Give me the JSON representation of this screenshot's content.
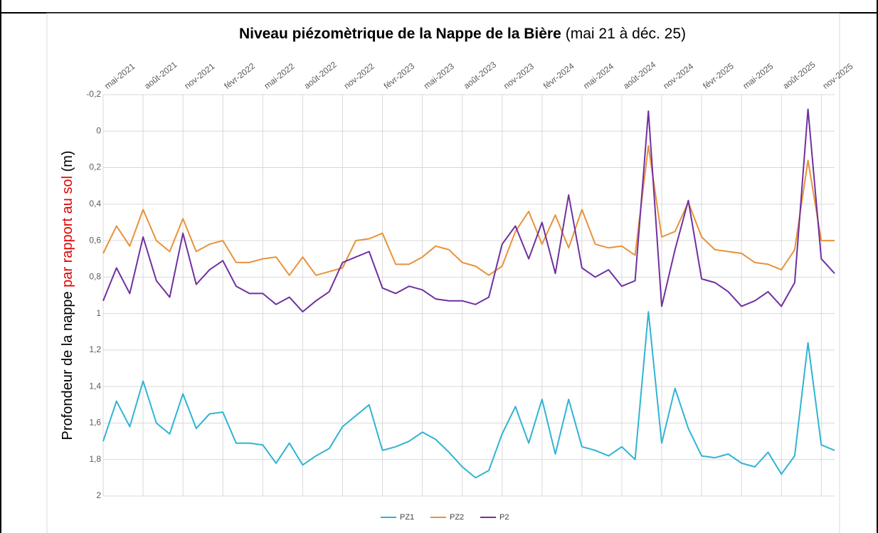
{
  "chart_data": {
    "type": "line",
    "title": "Niveau piézomètrique de la Nappe de la Bière",
    "subtitle": "(mai 21 à déc. 25)",
    "y_label": "Profondeur de la nappe ",
    "y_label_highlight": "par rapport au sol",
    "y_label_unit": " (m)",
    "ylim": [
      -0.2,
      2
    ],
    "y_reversed": true,
    "yticks": [
      {
        "value": -0.2,
        "label": "-0,2"
      },
      0,
      {
        "value": 0.2,
        "label": "0,2"
      },
      {
        "value": 0.4,
        "label": "0,4"
      },
      {
        "value": 0.6,
        "label": "0,6"
      },
      {
        "value": 0.8,
        "label": "0,8"
      },
      1,
      {
        "value": 1.2,
        "label": "1,2"
      },
      {
        "value": 1.4,
        "label": "1,4"
      },
      {
        "value": 1.6,
        "label": "1,6"
      },
      {
        "value": 1.8,
        "label": "1,8"
      },
      2
    ],
    "xlim": [
      "2021-05",
      "2025-12"
    ],
    "xticks": [
      {
        "value": "2021-05",
        "label": "mai-2021"
      },
      {
        "value": "2021-08",
        "label": "août-2021"
      },
      {
        "value": "2021-11",
        "label": "nov-2021"
      },
      {
        "value": "2022-02",
        "label": "févr-2022"
      },
      {
        "value": "2022-05",
        "label": "mai-2022"
      },
      {
        "value": "2022-08",
        "label": "août-2022"
      },
      {
        "value": "2022-11",
        "label": "nov-2022"
      },
      {
        "value": "2023-02",
        "label": "févr-2023"
      },
      {
        "value": "2023-05",
        "label": "mai-2023"
      },
      {
        "value": "2023-08",
        "label": "août-2023"
      },
      {
        "value": "2023-11",
        "label": "nov-2023"
      },
      {
        "value": "2024-02",
        "label": "févr-2024"
      },
      {
        "value": "2024-05",
        "label": "mai-2024"
      },
      {
        "value": "2024-08",
        "label": "août-2024"
      },
      {
        "value": "2024-11",
        "label": "nov-2024"
      },
      {
        "value": "2025-02",
        "label": "févr-2025"
      },
      {
        "value": "2025-05",
        "label": "mai-2025"
      },
      {
        "value": "2025-08",
        "label": "août-2025"
      },
      {
        "value": "2025-11",
        "label": "nov-2025"
      }
    ],
    "grid": true,
    "legend": "bottom",
    "x": [
      "2021-05",
      "2021-06",
      "2021-07",
      "2021-08",
      "2021-09",
      "2021-10",
      "2021-11",
      "2021-12",
      "2022-01",
      "2022-02",
      "2022-03",
      "2022-04",
      "2022-05",
      "2022-06",
      "2022-07",
      "2022-08",
      "2022-09",
      "2022-10",
      "2022-11",
      "2022-12",
      "2023-01",
      "2023-02",
      "2023-03",
      "2023-04",
      "2023-05",
      "2023-06",
      "2023-07",
      "2023-08",
      "2023-09",
      "2023-10",
      "2023-11",
      "2023-12",
      "2024-01",
      "2024-02",
      "2024-03",
      "2024-04",
      "2024-05",
      "2024-06",
      "2024-07",
      "2024-08",
      "2024-09",
      "2024-10",
      "2024-11",
      "2024-12",
      "2025-01",
      "2025-02",
      "2025-03",
      "2025-04",
      "2025-05",
      "2025-06",
      "2025-07",
      "2025-08",
      "2025-09",
      "2025-10",
      "2025-11",
      "2025-12"
    ],
    "series": [
      {
        "name": "PZ1",
        "color": "#2fb4d4",
        "values": [
          1.7,
          1.48,
          1.62,
          1.37,
          1.6,
          1.66,
          1.44,
          1.63,
          1.55,
          1.54,
          1.71,
          1.71,
          1.72,
          1.82,
          1.71,
          1.83,
          1.78,
          1.74,
          1.62,
          1.56,
          1.5,
          1.75,
          1.73,
          1.7,
          1.65,
          1.69,
          1.76,
          1.84,
          1.9,
          1.86,
          1.66,
          1.51,
          1.71,
          1.47,
          1.77,
          1.47,
          1.73,
          1.75,
          1.78,
          1.73,
          1.8,
          0.99,
          1.71,
          1.41,
          1.63,
          1.78,
          1.79,
          1.77,
          1.82,
          1.84,
          1.76,
          1.88,
          1.78,
          1.16,
          1.72,
          1.75
        ]
      },
      {
        "name": "PZ2",
        "color": "#e8923a",
        "values": [
          0.67,
          0.52,
          0.63,
          0.43,
          0.6,
          0.66,
          0.48,
          0.66,
          0.62,
          0.6,
          0.72,
          0.72,
          0.7,
          0.69,
          0.79,
          0.69,
          0.79,
          0.77,
          0.75,
          0.6,
          0.59,
          0.56,
          0.73,
          0.73,
          0.69,
          0.63,
          0.65,
          0.72,
          0.74,
          0.79,
          0.74,
          0.55,
          0.44,
          0.62,
          0.46,
          0.64,
          0.43,
          0.62,
          0.64,
          0.63,
          0.68,
          0.08,
          0.58,
          0.55,
          0.39,
          0.58,
          0.65,
          0.66,
          0.67,
          0.72,
          0.73,
          0.76,
          0.65,
          0.16,
          0.6,
          0.6
        ]
      },
      {
        "name": "P2",
        "color": "#7030a0",
        "values": [
          0.93,
          0.75,
          0.89,
          0.58,
          0.82,
          0.91,
          0.56,
          0.84,
          0.76,
          0.71,
          0.85,
          0.89,
          0.89,
          0.95,
          0.91,
          0.99,
          0.93,
          0.88,
          0.72,
          0.69,
          0.66,
          0.86,
          0.89,
          0.85,
          0.87,
          0.92,
          0.93,
          0.93,
          0.95,
          0.91,
          0.62,
          0.52,
          0.7,
          0.5,
          0.78,
          0.35,
          0.75,
          0.8,
          0.76,
          0.85,
          0.82,
          -0.11,
          0.96,
          0.65,
          0.38,
          0.81,
          0.83,
          0.88,
          0.96,
          0.93,
          0.88,
          0.96,
          0.83,
          -0.12,
          0.7,
          0.78
        ]
      }
    ]
  }
}
